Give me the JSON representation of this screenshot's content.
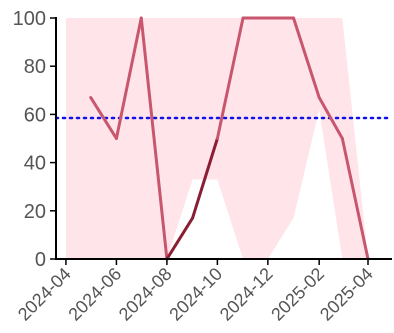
{
  "chart_data": {
    "type": "line",
    "title": "",
    "xlabel": "",
    "ylabel": "",
    "ylim": [
      0,
      100
    ],
    "xlim": [
      "2024-03-20",
      "2025-04-30"
    ],
    "y_ticks": [
      0,
      20,
      40,
      60,
      80,
      100
    ],
    "x_ticks": [
      "2024-04",
      "2024-06",
      "2024-08",
      "2024-10",
      "2024-12",
      "2025-02",
      "2025-04"
    ],
    "grid": false,
    "legend": "none",
    "band": {
      "color": "#ffe4ea",
      "x": [
        "2024-04-01",
        "2024-05-01",
        "2024-06-01",
        "2024-07-01",
        "2024-08-01",
        "2024-09-01",
        "2024-10-01",
        "2024-11-01",
        "2024-12-01",
        "2025-01-01",
        "2025-02-01",
        "2025-03-01",
        "2025-04-01"
      ],
      "upper": [
        100,
        100,
        100,
        100,
        100,
        100,
        100,
        100,
        100,
        100,
        100,
        100,
        0
      ],
      "lower": [
        0,
        0,
        0,
        0,
        0,
        33,
        33,
        0,
        0,
        17,
        62,
        0,
        0
      ]
    },
    "series": [
      {
        "color": "#c8566d",
        "highlight_color": "#8b1e35",
        "highlight_range": [
          "2024-08-01",
          "2024-10-01"
        ],
        "x": [
          "2024-05-01",
          "2024-06-01",
          "2024-07-01",
          "2024-08-01",
          "2024-09-01",
          "2024-10-01",
          "2024-11-01",
          "2024-12-01",
          "2025-01-01",
          "2025-02-01",
          "2025-03-01",
          "2025-04-01"
        ],
        "y": [
          67,
          50,
          100,
          0,
          17,
          50,
          100,
          100,
          100,
          67,
          50,
          0
        ]
      }
    ],
    "reference_line": {
      "y": 58.5,
      "color": "#1010ee",
      "style": "dotted"
    }
  }
}
